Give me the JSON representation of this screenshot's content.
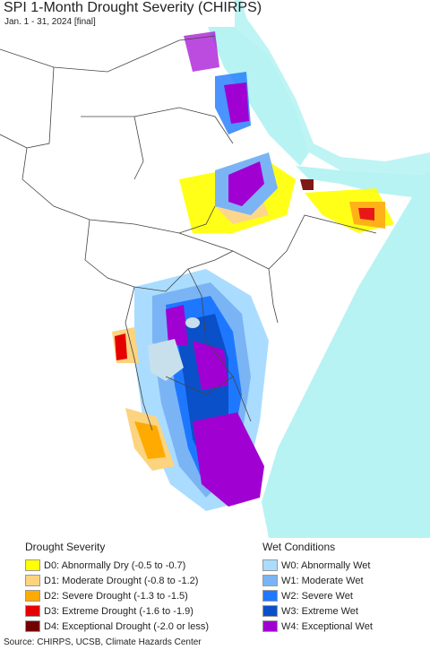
{
  "title": "SPI 1-Month Drought Severity (CHIRPS)",
  "subtitle": "Jan. 1 - 31, 2024 [final]",
  "colors": {
    "ocean": "#b7f3f3",
    "land": "#ffffff",
    "border": "#444444",
    "lake": "#c8e0ec"
  },
  "legend": {
    "drought": {
      "heading": "Drought Severity",
      "items": [
        {
          "label": "D0: Abnormally Dry (-0.5 to -0.7)",
          "color": "#ffff00"
        },
        {
          "label": "D1: Moderate Drought (-0.8 to -1.2)",
          "color": "#fcd37f"
        },
        {
          "label": "D2: Severe Drought (-1.3 to -1.5)",
          "color": "#ffaa00"
        },
        {
          "label": "D3: Extreme Drought (-1.6 to -1.9)",
          "color": "#e60000"
        },
        {
          "label": "D4: Exceptional Drought (-2.0 or less)",
          "color": "#730000"
        }
      ]
    },
    "wet": {
      "heading": "Wet Conditions",
      "items": [
        {
          "label": "W0: Abnormally Wet",
          "color": "#aadcff"
        },
        {
          "label": "W1: Moderate Wet",
          "color": "#7ab4f5"
        },
        {
          "label": "W2: Severe Wet",
          "color": "#1e78ff"
        },
        {
          "label": "W3: Extreme Wet",
          "color": "#0a50c8"
        },
        {
          "label": "W4: Exceptional Wet",
          "color": "#a000d2"
        }
      ]
    }
  },
  "source": "Source: CHIRPS, UCSB, Climate Hazards Center"
}
